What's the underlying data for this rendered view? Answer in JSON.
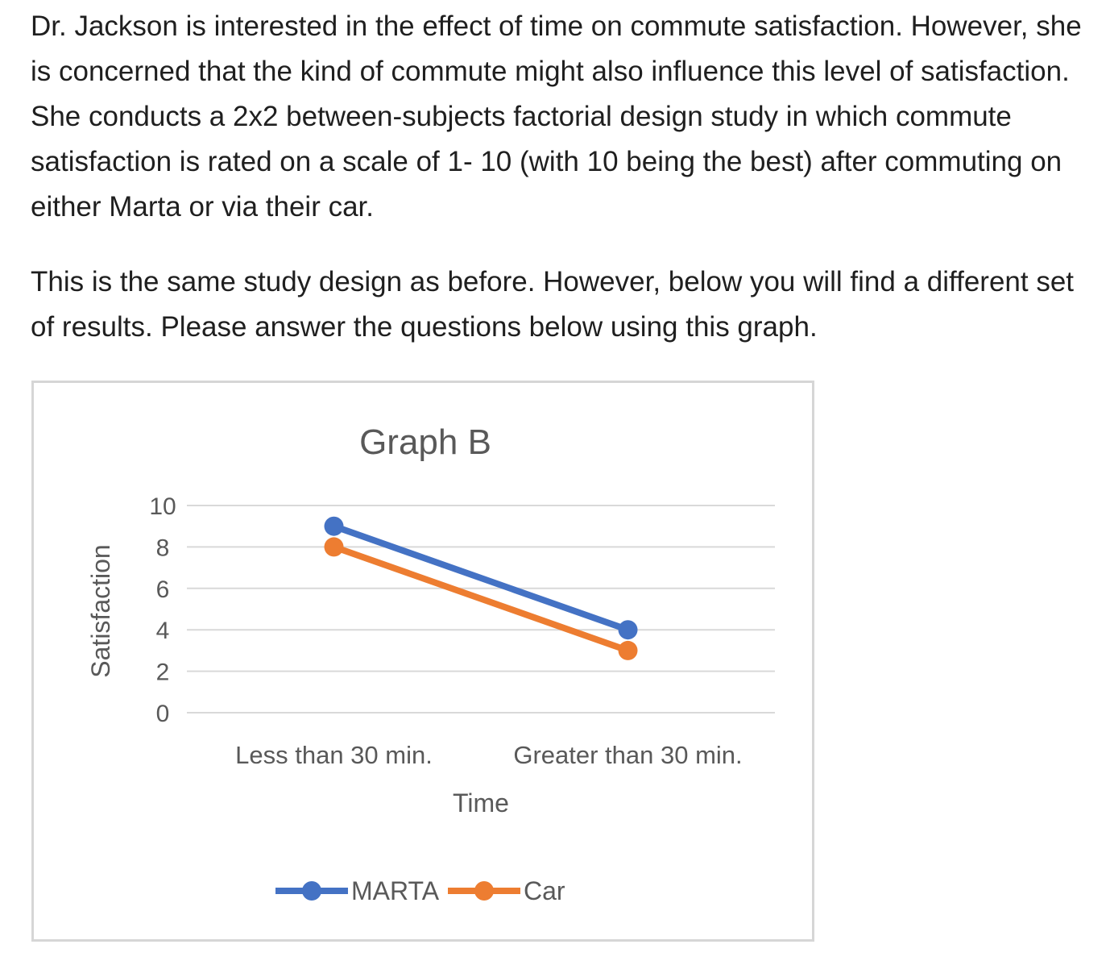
{
  "question": {
    "paragraph1": "Dr. Jackson is interested in the effect of time on commute satisfaction. However, she is concerned that the kind of commute might also influence this level of satisfaction. She conducts a 2x2 between-subjects factorial design study in which commute satisfaction is rated on a scale of 1- 10 (with 10 being the best) after commuting on either Marta or via their car.",
    "paragraph2": "This is the same study design as before. However, below you will find a different set of results. Please answer the questions below using this graph."
  },
  "chart_data": {
    "type": "line",
    "title": "Graph B",
    "xlabel": "Time",
    "ylabel": "Satisfaction",
    "categories": [
      "Less than 30 min.",
      "Greater than 30 min."
    ],
    "ylim": [
      0,
      10
    ],
    "yticks": [
      0,
      2,
      4,
      6,
      8,
      10
    ],
    "grid": true,
    "legend_position": "bottom",
    "series": [
      {
        "name": "MARTA",
        "values": [
          9,
          4
        ],
        "color": "#4472c4"
      },
      {
        "name": "Car",
        "values": [
          8,
          3
        ],
        "color": "#ed7d31"
      }
    ]
  }
}
